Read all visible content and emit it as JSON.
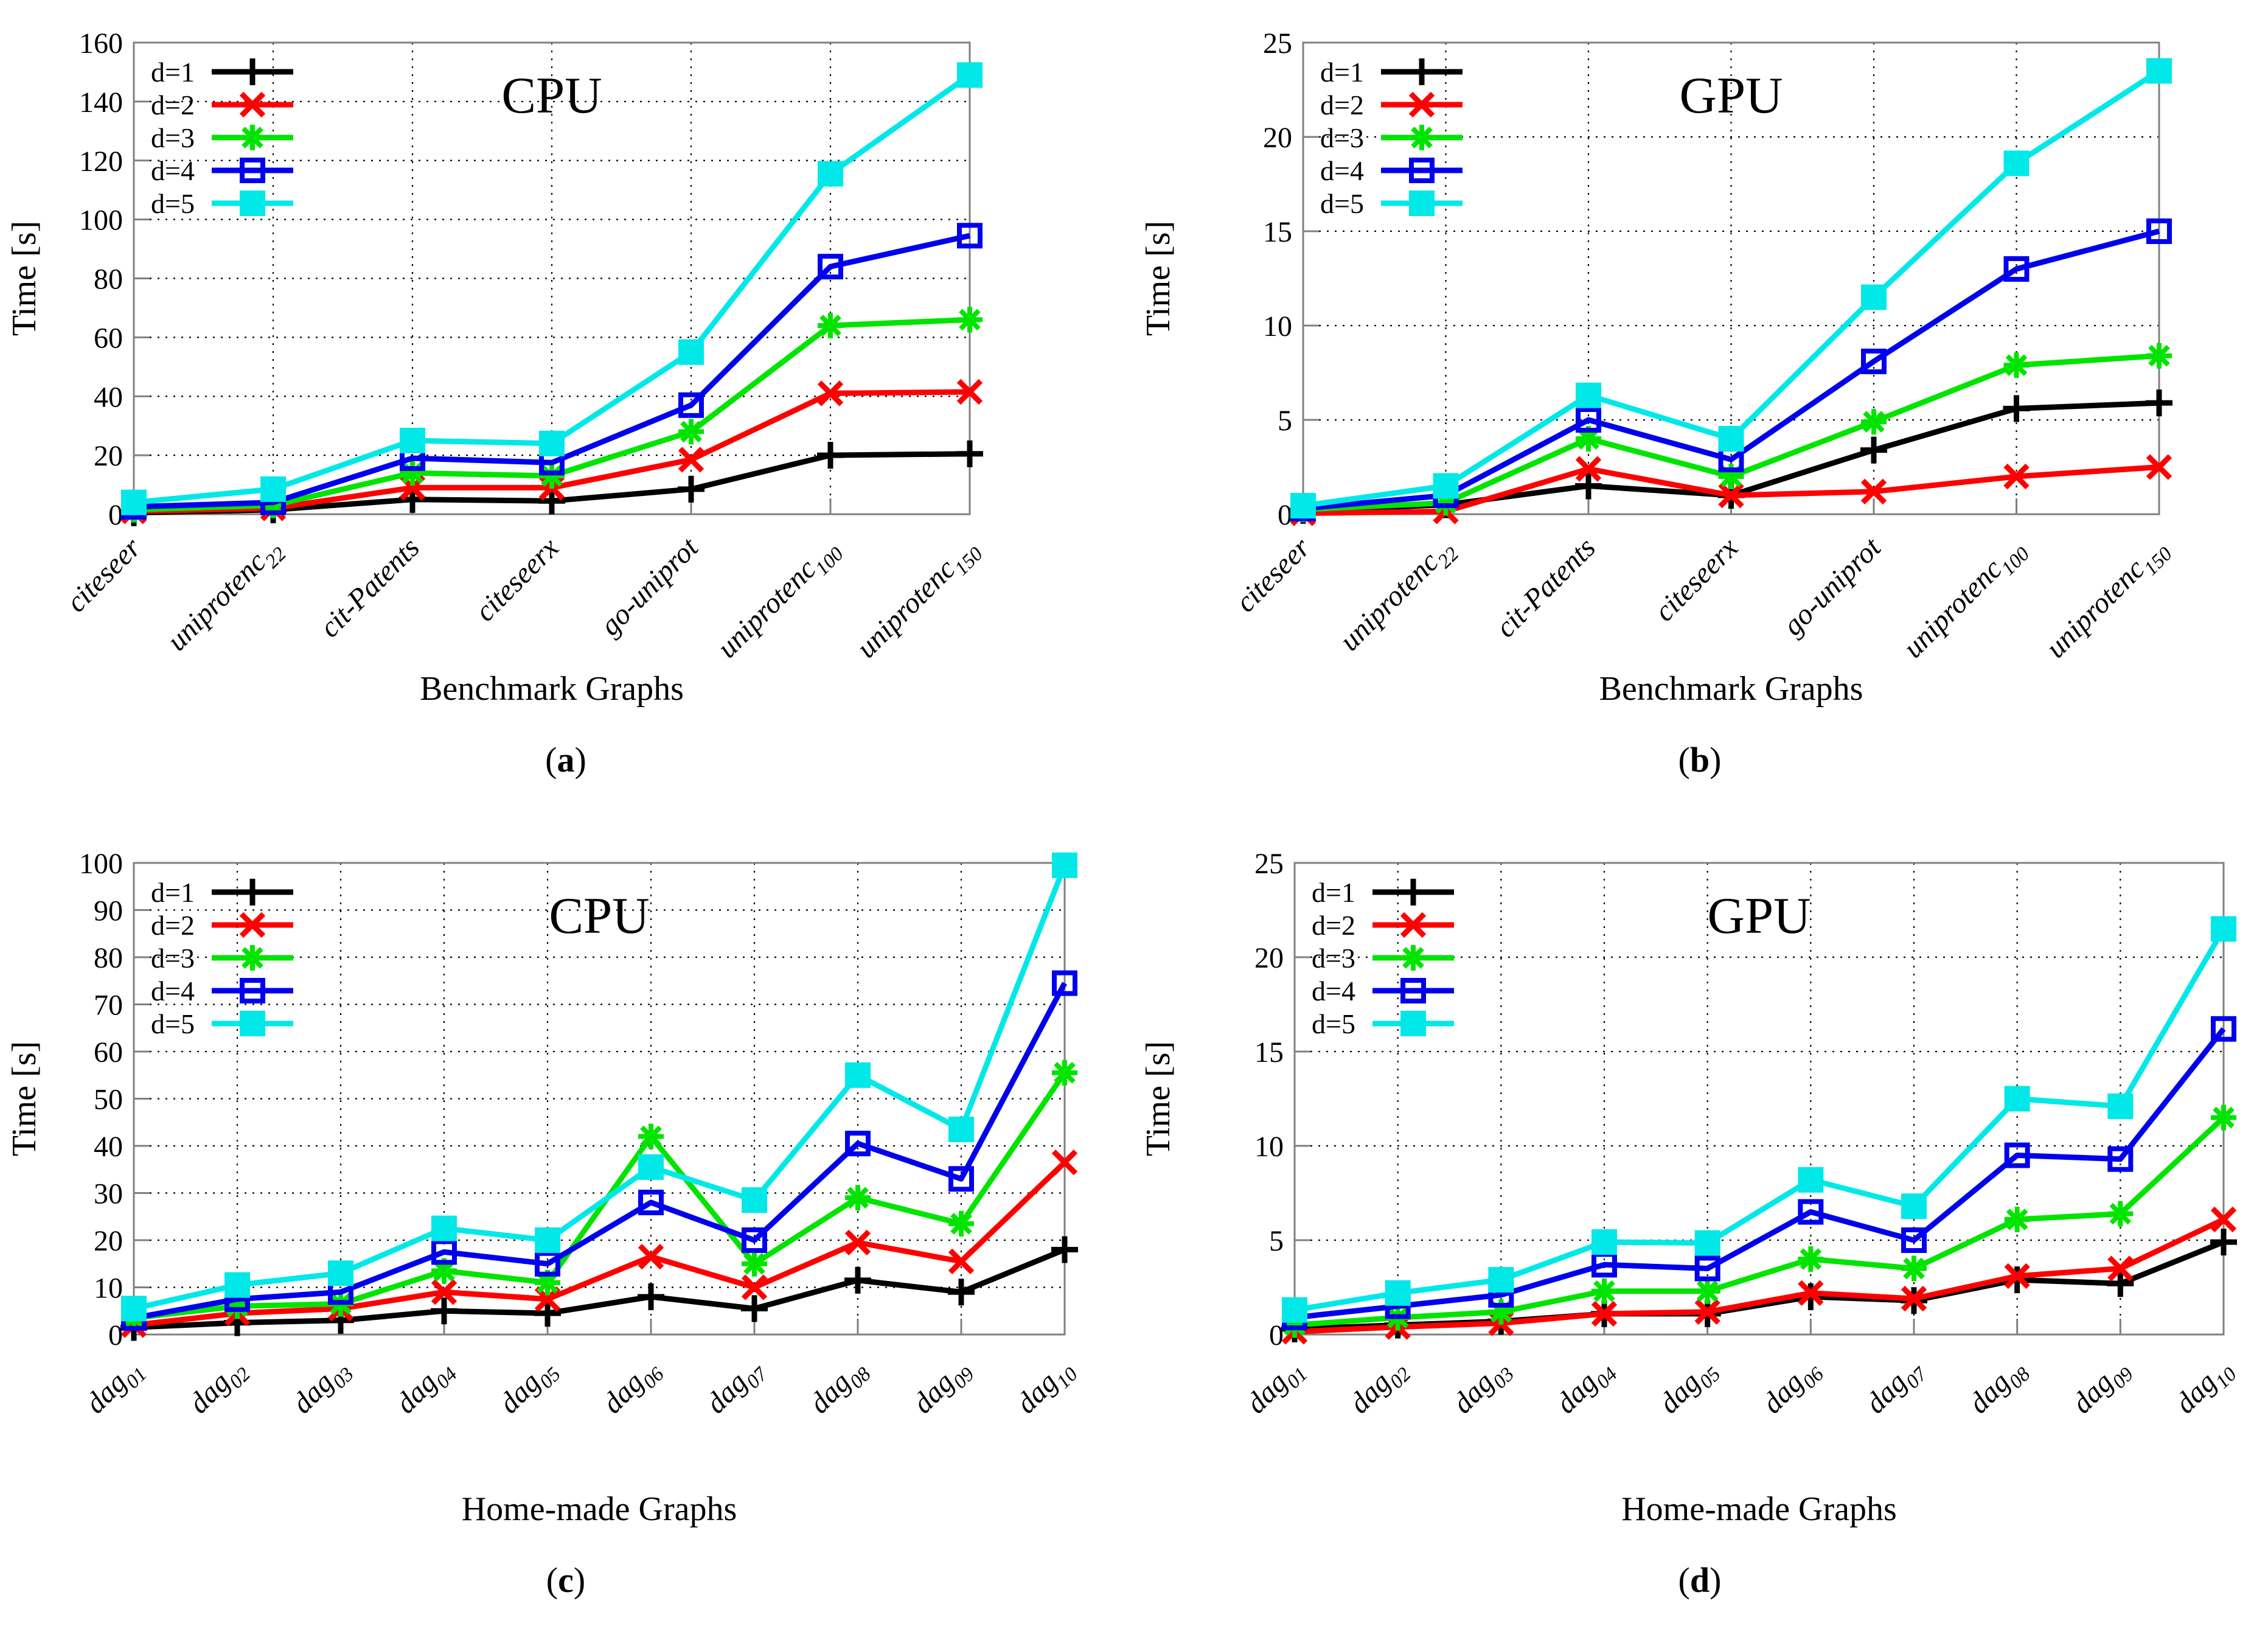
{
  "page": {
    "background": "#ffffff"
  },
  "legend": {
    "labels": [
      "d=1",
      "d=2",
      "d=3",
      "d=4",
      "d=5"
    ]
  },
  "palette": {
    "d1": "#000000",
    "d2": "#ff0000",
    "d3": "#00e400",
    "d4": "#0000ee",
    "d5": "#00e8e8",
    "axis_border": "#808080",
    "grid": "#000000"
  },
  "chart_data": [
    {
      "id": "a",
      "type": "line",
      "title": "CPU",
      "ylabel": "Time [s]",
      "xlabel": "Benchmark Graphs",
      "caption": {
        "open": "(",
        "letter": "a",
        "close": ")"
      },
      "ylim": [
        0,
        160
      ],
      "yticks": [
        0,
        20,
        40,
        60,
        80,
        100,
        120,
        140,
        160
      ],
      "grid": true,
      "legend_position": "top-left",
      "categories": [
        {
          "label": "citeseer",
          "sub": ""
        },
        {
          "label": "uniprotenc",
          "sub": "22"
        },
        {
          "label": "cit-Patents",
          "sub": ""
        },
        {
          "label": "citeseerx",
          "sub": ""
        },
        {
          "label": "go-uniprot",
          "sub": ""
        },
        {
          "label": "uniprotenc",
          "sub": "100"
        },
        {
          "label": "uniprotenc",
          "sub": "150"
        }
      ],
      "series": [
        {
          "name": "d=1",
          "color": "#000000",
          "marker": "plus",
          "values": [
            0.5,
            1.5,
            5,
            4.5,
            8.5,
            20,
            20.5
          ]
        },
        {
          "name": "d=2",
          "color": "#ff0000",
          "marker": "x",
          "values": [
            1,
            2,
            9,
            9,
            18.5,
            41,
            41.5
          ]
        },
        {
          "name": "d=3",
          "color": "#00e400",
          "marker": "asterisk",
          "values": [
            1.5,
            3,
            14,
            13,
            28,
            64,
            66
          ]
        },
        {
          "name": "d=4",
          "color": "#0000ee",
          "marker": "square-open",
          "values": [
            2.5,
            4,
            19,
            17.5,
            37,
            84,
            94.5
          ]
        },
        {
          "name": "d=5",
          "color": "#00e8e8",
          "marker": "square-filled",
          "values": [
            4,
            8.5,
            25,
            24,
            55,
            115.5,
            149
          ]
        }
      ]
    },
    {
      "id": "b",
      "type": "line",
      "title": "GPU",
      "ylabel": "Time [s]",
      "xlabel": "Benchmark Graphs",
      "caption": {
        "open": "(",
        "letter": "b",
        "close": ")"
      },
      "ylim": [
        0,
        25
      ],
      "yticks": [
        0,
        5,
        10,
        15,
        20,
        25
      ],
      "grid": true,
      "legend_position": "top-left",
      "categories": [
        {
          "label": "citeseer",
          "sub": ""
        },
        {
          "label": "uniprotenc",
          "sub": "22"
        },
        {
          "label": "cit-Patents",
          "sub": ""
        },
        {
          "label": "citeseerx",
          "sub": ""
        },
        {
          "label": "go-uniprot",
          "sub": ""
        },
        {
          "label": "uniprotenc",
          "sub": "100"
        },
        {
          "label": "uniprotenc",
          "sub": "150"
        }
      ],
      "series": [
        {
          "name": "d=1",
          "color": "#000000",
          "marker": "plus",
          "values": [
            0.2,
            0.5,
            1.5,
            1,
            3.4,
            5.6,
            5.9
          ]
        },
        {
          "name": "d=2",
          "color": "#ff0000",
          "marker": "x",
          "values": [
            0.05,
            0.15,
            2.4,
            1,
            1.2,
            2,
            2.5
          ]
        },
        {
          "name": "d=3",
          "color": "#00e400",
          "marker": "asterisk",
          "values": [
            0.25,
            0.6,
            4,
            2,
            4.9,
            7.9,
            8.4
          ]
        },
        {
          "name": "d=4",
          "color": "#0000ee",
          "marker": "square-open",
          "values": [
            0.3,
            1,
            5,
            2.9,
            8.1,
            13,
            15
          ]
        },
        {
          "name": "d=5",
          "color": "#00e8e8",
          "marker": "square-filled",
          "values": [
            0.45,
            1.5,
            6.3,
            4,
            11.5,
            18.6,
            23.5
          ]
        }
      ]
    },
    {
      "id": "c",
      "type": "line",
      "title": "CPU",
      "ylabel": "Time [s]",
      "xlabel": "Home-made Graphs",
      "caption": {
        "open": "(",
        "letter": "c",
        "close": ")"
      },
      "ylim": [
        0,
        100
      ],
      "yticks": [
        0,
        10,
        20,
        30,
        40,
        50,
        60,
        70,
        80,
        90,
        100
      ],
      "grid": true,
      "legend_position": "top-left",
      "categories": [
        {
          "label": "dag",
          "sub": "01"
        },
        {
          "label": "dag",
          "sub": "02"
        },
        {
          "label": "dag",
          "sub": "03"
        },
        {
          "label": "dag",
          "sub": "04"
        },
        {
          "label": "dag",
          "sub": "05"
        },
        {
          "label": "dag",
          "sub": "06"
        },
        {
          "label": "dag",
          "sub": "07"
        },
        {
          "label": "dag",
          "sub": "08"
        },
        {
          "label": "dag",
          "sub": "09"
        },
        {
          "label": "dag",
          "sub": "10"
        }
      ],
      "series": [
        {
          "name": "d=1",
          "color": "#000000",
          "marker": "plus",
          "values": [
            1.5,
            2.5,
            3,
            5,
            4.5,
            8,
            5.5,
            11.5,
            9,
            18
          ]
        },
        {
          "name": "d=2",
          "color": "#ff0000",
          "marker": "x",
          "values": [
            2,
            4.5,
            5.5,
            9,
            7.5,
            16.5,
            10,
            19.5,
            15.5,
            36.5
          ]
        },
        {
          "name": "d=3",
          "color": "#00e400",
          "marker": "asterisk",
          "values": [
            3.5,
            6,
            6.5,
            13.5,
            11,
            42,
            15,
            29,
            23.5,
            55.5
          ]
        },
        {
          "name": "d=4",
          "color": "#0000ee",
          "marker": "square-open",
          "values": [
            3.5,
            7.5,
            9,
            17.5,
            15,
            28,
            20,
            40.5,
            33,
            74.5
          ]
        },
        {
          "name": "d=5",
          "color": "#00e8e8",
          "marker": "square-filled",
          "values": [
            5.5,
            10.5,
            13,
            22.5,
            20,
            35.5,
            28.5,
            55,
            43.5,
            99.5
          ]
        }
      ]
    },
    {
      "id": "d",
      "type": "line",
      "title": "GPU",
      "ylabel": "Time [s]",
      "xlabel": "Home-made Graphs",
      "caption": {
        "open": "(",
        "letter": "d",
        "close": ")"
      },
      "ylim": [
        0,
        25
      ],
      "yticks": [
        0,
        5,
        10,
        15,
        20,
        25
      ],
      "grid": true,
      "legend_position": "top-left",
      "categories": [
        {
          "label": "dag",
          "sub": "01"
        },
        {
          "label": "dag",
          "sub": "02"
        },
        {
          "label": "dag",
          "sub": "03"
        },
        {
          "label": "dag",
          "sub": "04"
        },
        {
          "label": "dag",
          "sub": "05"
        },
        {
          "label": "dag",
          "sub": "06"
        },
        {
          "label": "dag",
          "sub": "07"
        },
        {
          "label": "dag",
          "sub": "08"
        },
        {
          "label": "dag",
          "sub": "09"
        },
        {
          "label": "dag",
          "sub": "10"
        }
      ],
      "series": [
        {
          "name": "d=1",
          "color": "#000000",
          "marker": "plus",
          "values": [
            0.3,
            0.5,
            0.7,
            1.1,
            1.1,
            2,
            1.8,
            2.9,
            2.7,
            4.9
          ]
        },
        {
          "name": "d=2",
          "color": "#ff0000",
          "marker": "x",
          "values": [
            0.15,
            0.4,
            0.6,
            1.1,
            1.2,
            2.2,
            1.9,
            3.1,
            3.5,
            6.1
          ]
        },
        {
          "name": "d=3",
          "color": "#00e400",
          "marker": "asterisk",
          "values": [
            0.5,
            0.9,
            1.2,
            2.3,
            2.3,
            4,
            3.5,
            6.1,
            6.4,
            11.5
          ]
        },
        {
          "name": "d=4",
          "color": "#0000ee",
          "marker": "square-open",
          "values": [
            0.9,
            1.5,
            2.1,
            3.7,
            3.5,
            6.5,
            5,
            9.5,
            9.3,
            16.2
          ]
        },
        {
          "name": "d=5",
          "color": "#00e8e8",
          "marker": "square-filled",
          "values": [
            1.3,
            2.2,
            2.9,
            4.9,
            4.85,
            8.2,
            6.8,
            12.5,
            12.1,
            21.5
          ]
        }
      ]
    }
  ]
}
